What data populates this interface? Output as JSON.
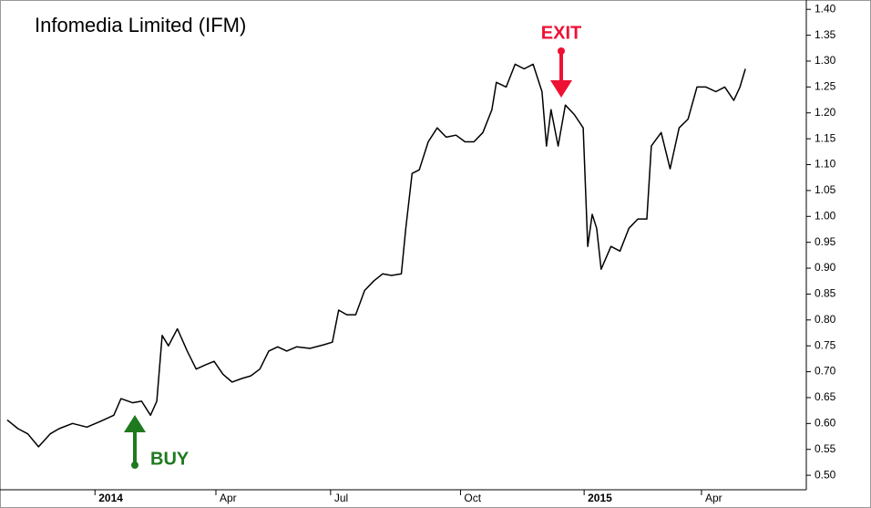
{
  "chart_data": {
    "type": "line",
    "title": "Infomedia Limited (IFM)",
    "annotations": [
      "BUY",
      "EXIT"
    ],
    "x": [
      0.8,
      2.0,
      3.1,
      4.3,
      5.6,
      6.6,
      8.1,
      9.7,
      11.2,
      12.7,
      13.5,
      14.8,
      15.8,
      16.8,
      17.5,
      18.1,
      18.8,
      19.8,
      20.9,
      21.9,
      22.9,
      23.9,
      24.9,
      25.9,
      27.0,
      28.0,
      29.0,
      30.0,
      31.0,
      32.0,
      33.1,
      34.6,
      36.1,
      37.1,
      37.8,
      38.7,
      39.7,
      40.7,
      41.7,
      42.7,
      43.7,
      44.8,
      45.3,
      46.0,
      46.8,
      47.8,
      48.8,
      49.8,
      50.9,
      51.9,
      52.9,
      53.9,
      54.9,
      55.4,
      56.5,
      57.5,
      58.5,
      59.5,
      60.5,
      61.0,
      61.5,
      62.3,
      63.1,
      64.1,
      65.1,
      65.6,
      66.1,
      66.6,
      67.1,
      68.2,
      69.2,
      70.2,
      71.2,
      72.2,
      72.7,
      73.8,
      74.8,
      75.8,
      76.8,
      77.8,
      78.8,
      79.9,
      80.9,
      81.9,
      82.6,
      83.2
    ],
    "series": [
      {
        "color": "#000000",
        "values": [
          0.607,
          0.59,
          0.58,
          0.555,
          0.58,
          0.59,
          0.6,
          0.593,
          0.604,
          0.616,
          0.648,
          0.64,
          0.643,
          0.616,
          0.643,
          0.77,
          0.75,
          0.783,
          0.74,
          0.705,
          0.713,
          0.72,
          0.695,
          0.68,
          0.687,
          0.692,
          0.705,
          0.74,
          0.748,
          0.74,
          0.748,
          0.745,
          0.752,
          0.757,
          0.819,
          0.81,
          0.81,
          0.857,
          0.875,
          0.889,
          0.886,
          0.889,
          0.977,
          1.083,
          1.09,
          1.144,
          1.171,
          1.153,
          1.157,
          1.144,
          1.144,
          1.162,
          1.206,
          1.259,
          1.25,
          1.294,
          1.285,
          1.294,
          1.241,
          1.136,
          1.206,
          1.136,
          1.215,
          1.197,
          1.171,
          0.942,
          1.004,
          0.977,
          0.898,
          0.942,
          0.933,
          0.977,
          0.995,
          0.995,
          1.136,
          1.162,
          1.092,
          1.171,
          1.188,
          1.25,
          1.25,
          1.241,
          1.25,
          1.224,
          1.25,
          1.285
        ]
      }
    ],
    "xlim": [
      0,
      90
    ],
    "xticks": [
      {
        "value": 10.6,
        "label": "2014"
      },
      {
        "value": 24.1,
        "label": "Apr"
      },
      {
        "value": 36.9,
        "label": "Jul"
      },
      {
        "value": 51.4,
        "label": "Oct"
      },
      {
        "value": 65.2,
        "label": "2015"
      },
      {
        "value": 78.3,
        "label": "Apr"
      }
    ],
    "ylim": [
      0.472,
      1.418
    ],
    "yticks": [
      {
        "value": 0.5,
        "label": "0.50"
      },
      0.55,
      {
        "value": 0.6,
        "label": "0.60"
      },
      0.65,
      {
        "value": 0.7,
        "label": "0.70"
      },
      0.75,
      {
        "value": 0.8,
        "label": "0.80"
      },
      0.85,
      {
        "value": 0.9,
        "label": "0.90"
      },
      0.95,
      {
        "value": 1.0,
        "label": "1.00"
      },
      1.05,
      {
        "value": 1.1,
        "label": "1.10"
      },
      1.15,
      {
        "value": 1.2,
        "label": "1.20"
      },
      1.25,
      {
        "value": 1.3,
        "label": "1.30"
      },
      1.35,
      {
        "value": 1.4,
        "label": "1.40"
      }
    ]
  }
}
